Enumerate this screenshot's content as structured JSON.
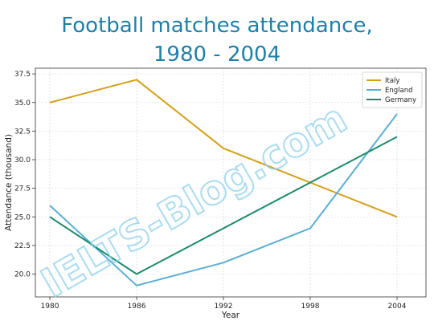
{
  "title_line1": "Football matches attendance,",
  "title_line2": "1980 - 2004",
  "watermark": "IELTS-Blog.com",
  "chart_data": {
    "type": "line",
    "title": "Football matches attendance, 1980 - 2004",
    "xlabel": "Year",
    "ylabel": "Attendance (thousand)",
    "x": [
      1980,
      1986,
      1992,
      1998,
      2004
    ],
    "xlim": [
      1979,
      2006
    ],
    "ylim": [
      18,
      38
    ],
    "yticks": [
      20.0,
      22.5,
      25.0,
      27.5,
      30.0,
      32.5,
      35.0,
      37.5
    ],
    "ytick_labels": [
      "20.0",
      "22.5",
      "25.0",
      "27.5",
      "30.0",
      "32.5",
      "35.0",
      "37.5"
    ],
    "grid": true,
    "legend_position": "top-right",
    "series": [
      {
        "name": "Italy",
        "color": "#d4a017",
        "values": [
          35,
          37,
          31,
          28,
          25
        ]
      },
      {
        "name": "England",
        "color": "#5aaed4",
        "values": [
          26,
          19,
          21,
          24,
          34
        ]
      },
      {
        "name": "Germany",
        "color": "#1b8a6b",
        "values": [
          25,
          20,
          24,
          28,
          32
        ]
      }
    ]
  }
}
